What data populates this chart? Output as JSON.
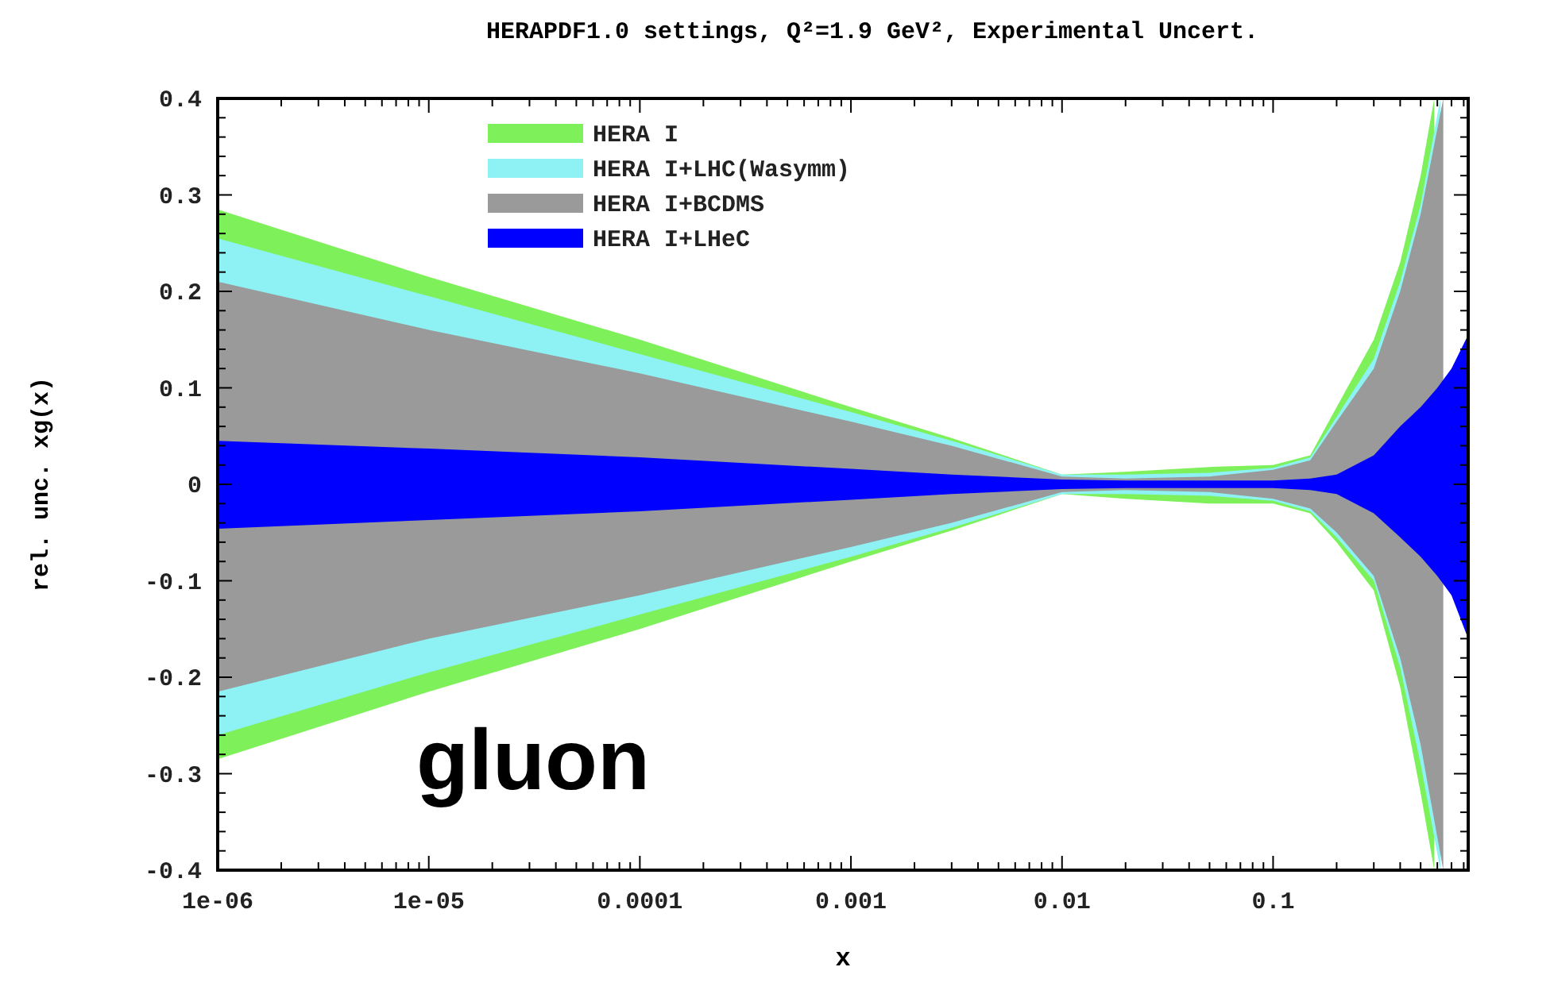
{
  "chart_data": {
    "type": "area",
    "title": "HERAPDF1.0 settings, Q²=1.9 GeV², Experimental Uncert.",
    "xlabel": "x",
    "ylabel": "rel. unc. xg(x)",
    "log": "x",
    "xlim": [
      1e-06,
      0.84
    ],
    "ylim": [
      -0.4,
      0.4
    ],
    "xticks": [
      {
        "value": 1e-06,
        "label": "1e-06"
      },
      {
        "value": 1e-05,
        "label": "1e-05"
      },
      0.0001,
      0.001,
      0.01,
      0.1
    ],
    "yticks": [
      -0.4,
      -0.3,
      -0.2,
      -0.1,
      0,
      0.1,
      0.2,
      0.3,
      0.4
    ],
    "legend": "top",
    "grid": false,
    "annotations": [
      "gluon"
    ],
    "series": [
      {
        "name": "HERA I",
        "color": "#7ef05a",
        "x": [
          1e-06,
          1e-05,
          0.0001,
          0.001,
          0.003,
          0.01,
          0.02,
          0.05,
          0.1,
          0.15,
          0.2,
          0.3,
          0.4,
          0.5,
          0.58
        ],
        "values": [
          0.285,
          0.215,
          0.15,
          0.08,
          0.048,
          0.01,
          0.013,
          0.018,
          0.02,
          0.03,
          0.08,
          0.15,
          0.23,
          0.32,
          0.4
        ]
      },
      {
        "color": "#7ef05a",
        "x": [
          1e-06,
          1e-05,
          0.0001,
          0.001,
          0.003,
          0.01,
          0.02,
          0.05,
          0.1,
          0.15,
          0.2,
          0.3,
          0.4,
          0.5,
          0.58
        ],
        "values": [
          -0.285,
          -0.215,
          -0.15,
          -0.08,
          -0.048,
          -0.01,
          -0.015,
          -0.02,
          -0.02,
          -0.03,
          -0.06,
          -0.11,
          -0.21,
          -0.32,
          -0.4
        ]
      },
      {
        "name": "HERA I+LHC(Wasymm)",
        "color": "#8ef2f5",
        "x": [
          1e-06,
          1e-05,
          0.0001,
          0.001,
          0.003,
          0.01,
          0.02,
          0.05,
          0.1,
          0.15,
          0.2,
          0.3,
          0.4,
          0.5,
          0.62
        ],
        "values": [
          0.255,
          0.195,
          0.135,
          0.075,
          0.045,
          0.01,
          0.01,
          0.012,
          0.017,
          0.028,
          0.07,
          0.13,
          0.21,
          0.29,
          0.4
        ]
      },
      {
        "color": "#8ef2f5",
        "x": [
          1e-06,
          1e-05,
          0.0001,
          0.001,
          0.003,
          0.01,
          0.02,
          0.05,
          0.1,
          0.15,
          0.2,
          0.3,
          0.4,
          0.5,
          0.62
        ],
        "values": [
          -0.26,
          -0.195,
          -0.135,
          -0.075,
          -0.045,
          -0.01,
          -0.01,
          -0.012,
          -0.017,
          -0.028,
          -0.055,
          -0.1,
          -0.19,
          -0.29,
          -0.4
        ]
      },
      {
        "name": "HERA I+BCDMS",
        "color": "#9a9a9a",
        "x": [
          1e-06,
          1e-05,
          0.0001,
          0.001,
          0.003,
          0.01,
          0.02,
          0.05,
          0.1,
          0.15,
          0.2,
          0.3,
          0.4,
          0.5,
          0.64
        ],
        "values": [
          0.21,
          0.16,
          0.115,
          0.065,
          0.04,
          0.008,
          0.006,
          0.008,
          0.015,
          0.025,
          0.065,
          0.12,
          0.2,
          0.28,
          0.4
        ]
      },
      {
        "color": "#9a9a9a",
        "x": [
          1e-06,
          1e-05,
          0.0001,
          0.001,
          0.003,
          0.01,
          0.02,
          0.05,
          0.1,
          0.15,
          0.2,
          0.3,
          0.4,
          0.5,
          0.64
        ],
        "values": [
          -0.215,
          -0.16,
          -0.115,
          -0.065,
          -0.04,
          -0.008,
          -0.006,
          -0.008,
          -0.015,
          -0.025,
          -0.05,
          -0.095,
          -0.18,
          -0.27,
          -0.4
        ]
      },
      {
        "name": "HERA I+LHeC",
        "color": "#0000ff",
        "x": [
          1e-06,
          1e-05,
          0.0001,
          0.001,
          0.003,
          0.01,
          0.02,
          0.05,
          0.1,
          0.15,
          0.2,
          0.3,
          0.4,
          0.5,
          0.6,
          0.7,
          0.84
        ],
        "values": [
          0.045,
          0.037,
          0.028,
          0.016,
          0.01,
          0.005,
          0.004,
          0.004,
          0.004,
          0.006,
          0.01,
          0.03,
          0.06,
          0.08,
          0.1,
          0.12,
          0.155
        ]
      },
      {
        "color": "#0000fe",
        "x": [
          1e-06,
          1e-05,
          0.0001,
          0.001,
          0.003,
          0.01,
          0.02,
          0.05,
          0.1,
          0.15,
          0.2,
          0.3,
          0.4,
          0.5,
          0.6,
          0.7,
          0.84
        ],
        "values": [
          -0.046,
          -0.037,
          -0.028,
          -0.016,
          -0.01,
          -0.005,
          -0.004,
          -0.004,
          -0.004,
          -0.006,
          -0.01,
          -0.03,
          -0.055,
          -0.075,
          -0.095,
          -0.115,
          -0.16
        ]
      }
    ]
  }
}
